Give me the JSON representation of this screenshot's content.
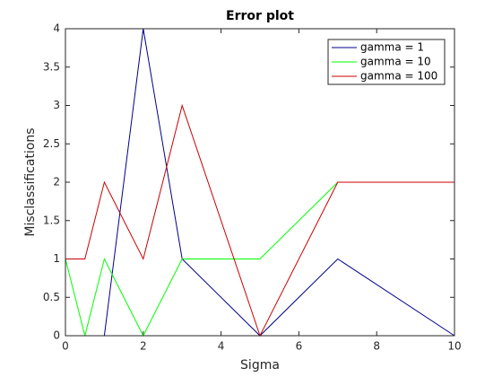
{
  "chart_data": {
    "type": "line",
    "title": "Error plot",
    "x_label": "Sigma",
    "y_label": "Misclassifications",
    "x": [
      0,
      0.5,
      1,
      2,
      3,
      5,
      7,
      10
    ],
    "series": [
      {
        "name": "gamma = 1",
        "color": "#00008b",
        "values": [
          0,
          0,
          0,
          4,
          1,
          0,
          1,
          0
        ]
      },
      {
        "name": "gamma = 10",
        "color": "#00ff00",
        "values": [
          1,
          0,
          1,
          0,
          1,
          1,
          2,
          2
        ]
      },
      {
        "name": "gamma = 100",
        "color": "#cc0000",
        "values": [
          1,
          1,
          2,
          1,
          3,
          0,
          2,
          2
        ]
      }
    ],
    "xlim": [
      0,
      10
    ],
    "xticks": [
      0,
      2,
      4,
      6,
      8,
      10
    ],
    "ylim": [
      0,
      4
    ],
    "yticks": [
      0,
      0.5,
      1,
      1.5,
      2,
      2.5,
      3,
      3.5,
      4
    ],
    "grid": false,
    "legend": "upper right"
  }
}
